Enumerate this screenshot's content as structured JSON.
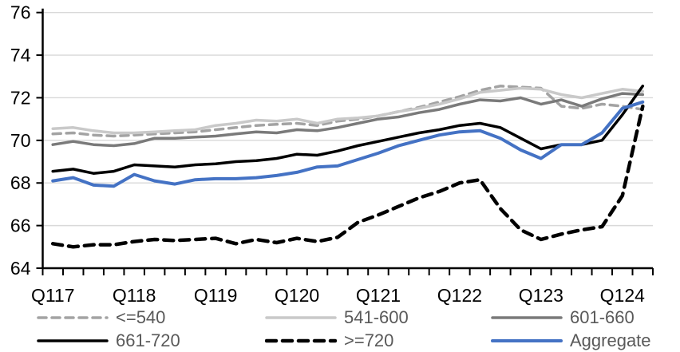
{
  "chart_data": {
    "type": "line",
    "title": "",
    "xlabel": "",
    "ylabel": "",
    "ylim": [
      64,
      76
    ],
    "ytick_step": 2,
    "grid": true,
    "grid_color": "#d9d9d9",
    "axis_color": "#000000",
    "legend_position": "bottom",
    "x": [
      "Q117",
      "Q217",
      "Q317",
      "Q417",
      "Q118",
      "Q218",
      "Q318",
      "Q418",
      "Q119",
      "Q219",
      "Q319",
      "Q419",
      "Q120",
      "Q220",
      "Q320",
      "Q420",
      "Q121",
      "Q221",
      "Q321",
      "Q421",
      "Q122",
      "Q222",
      "Q322",
      "Q422",
      "Q123",
      "Q223",
      "Q323",
      "Q423",
      "Q124",
      "Q224"
    ],
    "x_labels": [
      {
        "i": 0,
        "label": "Q117"
      },
      {
        "i": 4,
        "label": "Q118"
      },
      {
        "i": 8,
        "label": "Q119"
      },
      {
        "i": 12,
        "label": "Q120"
      },
      {
        "i": 16,
        "label": "Q121"
      },
      {
        "i": 20,
        "label": "Q122"
      },
      {
        "i": 24,
        "label": "Q123"
      },
      {
        "i": 28,
        "label": "Q124"
      }
    ],
    "series": [
      {
        "name": "<=540",
        "color": "#a3a3a3",
        "dash": "10 7",
        "width": 3.5,
        "values": [
          70.3,
          70.35,
          70.25,
          70.2,
          70.25,
          70.3,
          70.35,
          70.4,
          70.5,
          70.6,
          70.7,
          70.75,
          70.8,
          70.7,
          70.9,
          71.0,
          71.15,
          71.35,
          71.55,
          71.8,
          72.05,
          72.35,
          72.55,
          72.5,
          72.45,
          71.6,
          71.5,
          71.7,
          71.6,
          71.45
        ]
      },
      {
        "name": "541-600",
        "color": "#c9c9c9",
        "dash": "",
        "width": 3.5,
        "values": [
          70.55,
          70.6,
          70.45,
          70.35,
          70.35,
          70.4,
          70.45,
          70.5,
          70.7,
          70.8,
          70.95,
          70.9,
          71.0,
          70.8,
          71.0,
          71.05,
          71.15,
          71.35,
          71.5,
          71.7,
          71.95,
          72.25,
          72.35,
          72.45,
          72.4,
          72.15,
          72.0,
          72.2,
          72.4,
          72.3
        ]
      },
      {
        "name": "601-660",
        "color": "#7a7a7a",
        "dash": "",
        "width": 3.5,
        "values": [
          69.8,
          69.95,
          69.8,
          69.75,
          69.85,
          70.1,
          70.1,
          70.15,
          70.2,
          70.3,
          70.4,
          70.35,
          70.5,
          70.45,
          70.6,
          70.8,
          71.0,
          71.1,
          71.3,
          71.45,
          71.7,
          71.9,
          71.85,
          72.0,
          71.7,
          71.9,
          71.6,
          71.95,
          72.2,
          72.15
        ]
      },
      {
        "name": "661-720",
        "color": "#000000",
        "dash": "",
        "width": 3.5,
        "values": [
          68.55,
          68.65,
          68.45,
          68.55,
          68.85,
          68.8,
          68.75,
          68.85,
          68.9,
          69.0,
          69.05,
          69.15,
          69.35,
          69.3,
          69.5,
          69.75,
          69.95,
          70.15,
          70.35,
          70.5,
          70.7,
          70.8,
          70.6,
          70.1,
          69.6,
          69.8,
          69.8,
          70.0,
          71.2,
          72.55
        ]
      },
      {
        "name": ">=720",
        "color": "#000000",
        "dash": "12 8",
        "width": 4.5,
        "values": [
          65.15,
          65.0,
          65.1,
          65.1,
          65.25,
          65.35,
          65.3,
          65.35,
          65.4,
          65.15,
          65.35,
          65.2,
          65.4,
          65.25,
          65.45,
          66.15,
          66.5,
          66.9,
          67.3,
          67.6,
          68.0,
          68.15,
          66.8,
          65.8,
          65.35,
          65.6,
          65.8,
          65.95,
          67.4,
          71.6
        ]
      },
      {
        "name": "Aggregate",
        "color": "#4472c4",
        "dash": "",
        "width": 4,
        "values": [
          68.1,
          68.25,
          67.9,
          67.85,
          68.4,
          68.1,
          67.95,
          68.15,
          68.2,
          68.2,
          68.25,
          68.35,
          68.5,
          68.75,
          68.8,
          69.1,
          69.4,
          69.75,
          70.0,
          70.25,
          70.4,
          70.45,
          70.1,
          69.55,
          69.15,
          69.8,
          69.8,
          70.35,
          71.5,
          71.8
        ]
      }
    ]
  }
}
